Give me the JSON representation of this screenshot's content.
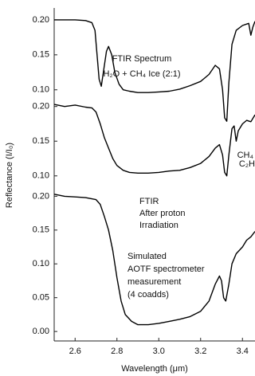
{
  "chart_data": [
    {
      "type": "line",
      "color": "#000000",
      "x": [
        2.5,
        2.55,
        2.6,
        2.65,
        2.68,
        2.695,
        2.705,
        2.715,
        2.725,
        2.735,
        2.75,
        2.76,
        2.775,
        2.79,
        2.81,
        2.83,
        2.86,
        2.9,
        2.95,
        3.0,
        3.05,
        3.1,
        3.15,
        3.2,
        3.24,
        3.27,
        3.29,
        3.305,
        3.315,
        3.325,
        3.335,
        3.35,
        3.37,
        3.4,
        3.43,
        3.44,
        3.45,
        3.46
      ],
      "values": [
        0.2,
        0.2,
        0.2,
        0.199,
        0.196,
        0.185,
        0.15,
        0.115,
        0.105,
        0.125,
        0.155,
        0.162,
        0.15,
        0.125,
        0.108,
        0.1,
        0.098,
        0.096,
        0.096,
        0.097,
        0.098,
        0.101,
        0.106,
        0.112,
        0.122,
        0.135,
        0.13,
        0.1,
        0.06,
        0.055,
        0.11,
        0.165,
        0.185,
        0.192,
        0.195,
        0.178,
        0.19,
        0.198
      ],
      "xlim": [
        2.5,
        3.46
      ],
      "ylim": [
        0.094,
        0.217
      ],
      "yticks": [
        {
          "value": 0.1,
          "label": "0.10"
        },
        0.15,
        {
          "value": 0.2,
          "label": "0.20"
        }
      ],
      "annotations": [
        "FTIR Spectrum",
        "H₂O + CH₄ Ice (2:1)",
        "CH₄"
      ]
    },
    {
      "type": "line",
      "color": "#000000",
      "x": [
        2.5,
        2.55,
        2.6,
        2.65,
        2.68,
        2.7,
        2.72,
        2.74,
        2.76,
        2.78,
        2.8,
        2.83,
        2.86,
        2.9,
        2.95,
        3.0,
        3.05,
        3.1,
        3.15,
        3.2,
        3.24,
        3.27,
        3.29,
        3.305,
        3.315,
        3.325,
        3.335,
        3.35,
        3.36,
        3.37,
        3.38,
        3.4,
        3.42,
        3.44,
        3.46
      ],
      "values": [
        0.203,
        0.2,
        0.202,
        0.199,
        0.198,
        0.192,
        0.175,
        0.155,
        0.14,
        0.125,
        0.115,
        0.108,
        0.105,
        0.104,
        0.104,
        0.105,
        0.107,
        0.108,
        0.112,
        0.118,
        0.128,
        0.14,
        0.145,
        0.13,
        0.105,
        0.1,
        0.13,
        0.168,
        0.172,
        0.15,
        0.165,
        0.175,
        0.18,
        0.178,
        0.188
      ],
      "xlim": [
        2.5,
        3.46
      ],
      "ylim": [
        0.094,
        0.218
      ],
      "yticks": [
        {
          "value": 0.1,
          "label": "0.10"
        },
        0.15,
        {
          "value": 0.2,
          "label": "0.20"
        }
      ],
      "ylabel": "Reflectance (I/I₀)",
      "annotations": [
        "FTIR",
        "After proton",
        "Irradiation",
        "C₂H"
      ]
    },
    {
      "type": "line",
      "color": "#000000",
      "x": [
        2.5,
        2.55,
        2.6,
        2.65,
        2.7,
        2.72,
        2.74,
        2.76,
        2.78,
        2.8,
        2.82,
        2.84,
        2.87,
        2.9,
        2.95,
        3.0,
        3.05,
        3.1,
        3.15,
        3.2,
        3.24,
        3.27,
        3.29,
        3.3,
        3.31,
        3.32,
        3.335,
        3.35,
        3.37,
        3.4,
        3.42,
        3.44,
        3.46
      ],
      "values": [
        0.203,
        0.2,
        0.199,
        0.198,
        0.195,
        0.188,
        0.17,
        0.15,
        0.12,
        0.08,
        0.045,
        0.025,
        0.015,
        0.01,
        0.01,
        0.012,
        0.015,
        0.018,
        0.022,
        0.03,
        0.045,
        0.07,
        0.082,
        0.075,
        0.05,
        0.045,
        0.07,
        0.1,
        0.115,
        0.125,
        0.135,
        0.14,
        0.148
      ],
      "xlim": [
        2.5,
        3.46
      ],
      "ylim": [
        -0.014,
        0.224
      ],
      "yticks": [
        {
          "value": 0,
          "label": "0.00"
        },
        0.05,
        {
          "value": 0.1,
          "label": "0.10"
        },
        0.15,
        {
          "value": 0.2,
          "label": "0.20"
        }
      ],
      "xticks": [
        2.6,
        2.8,
        {
          "value": 3,
          "label": "3.0"
        },
        3.2,
        3.4
      ],
      "xlabel": "Wavelength (μm)",
      "annotations": [
        "Simulated",
        "AOTF spectrometer",
        "measurement",
        "(4 coadds)"
      ]
    }
  ]
}
